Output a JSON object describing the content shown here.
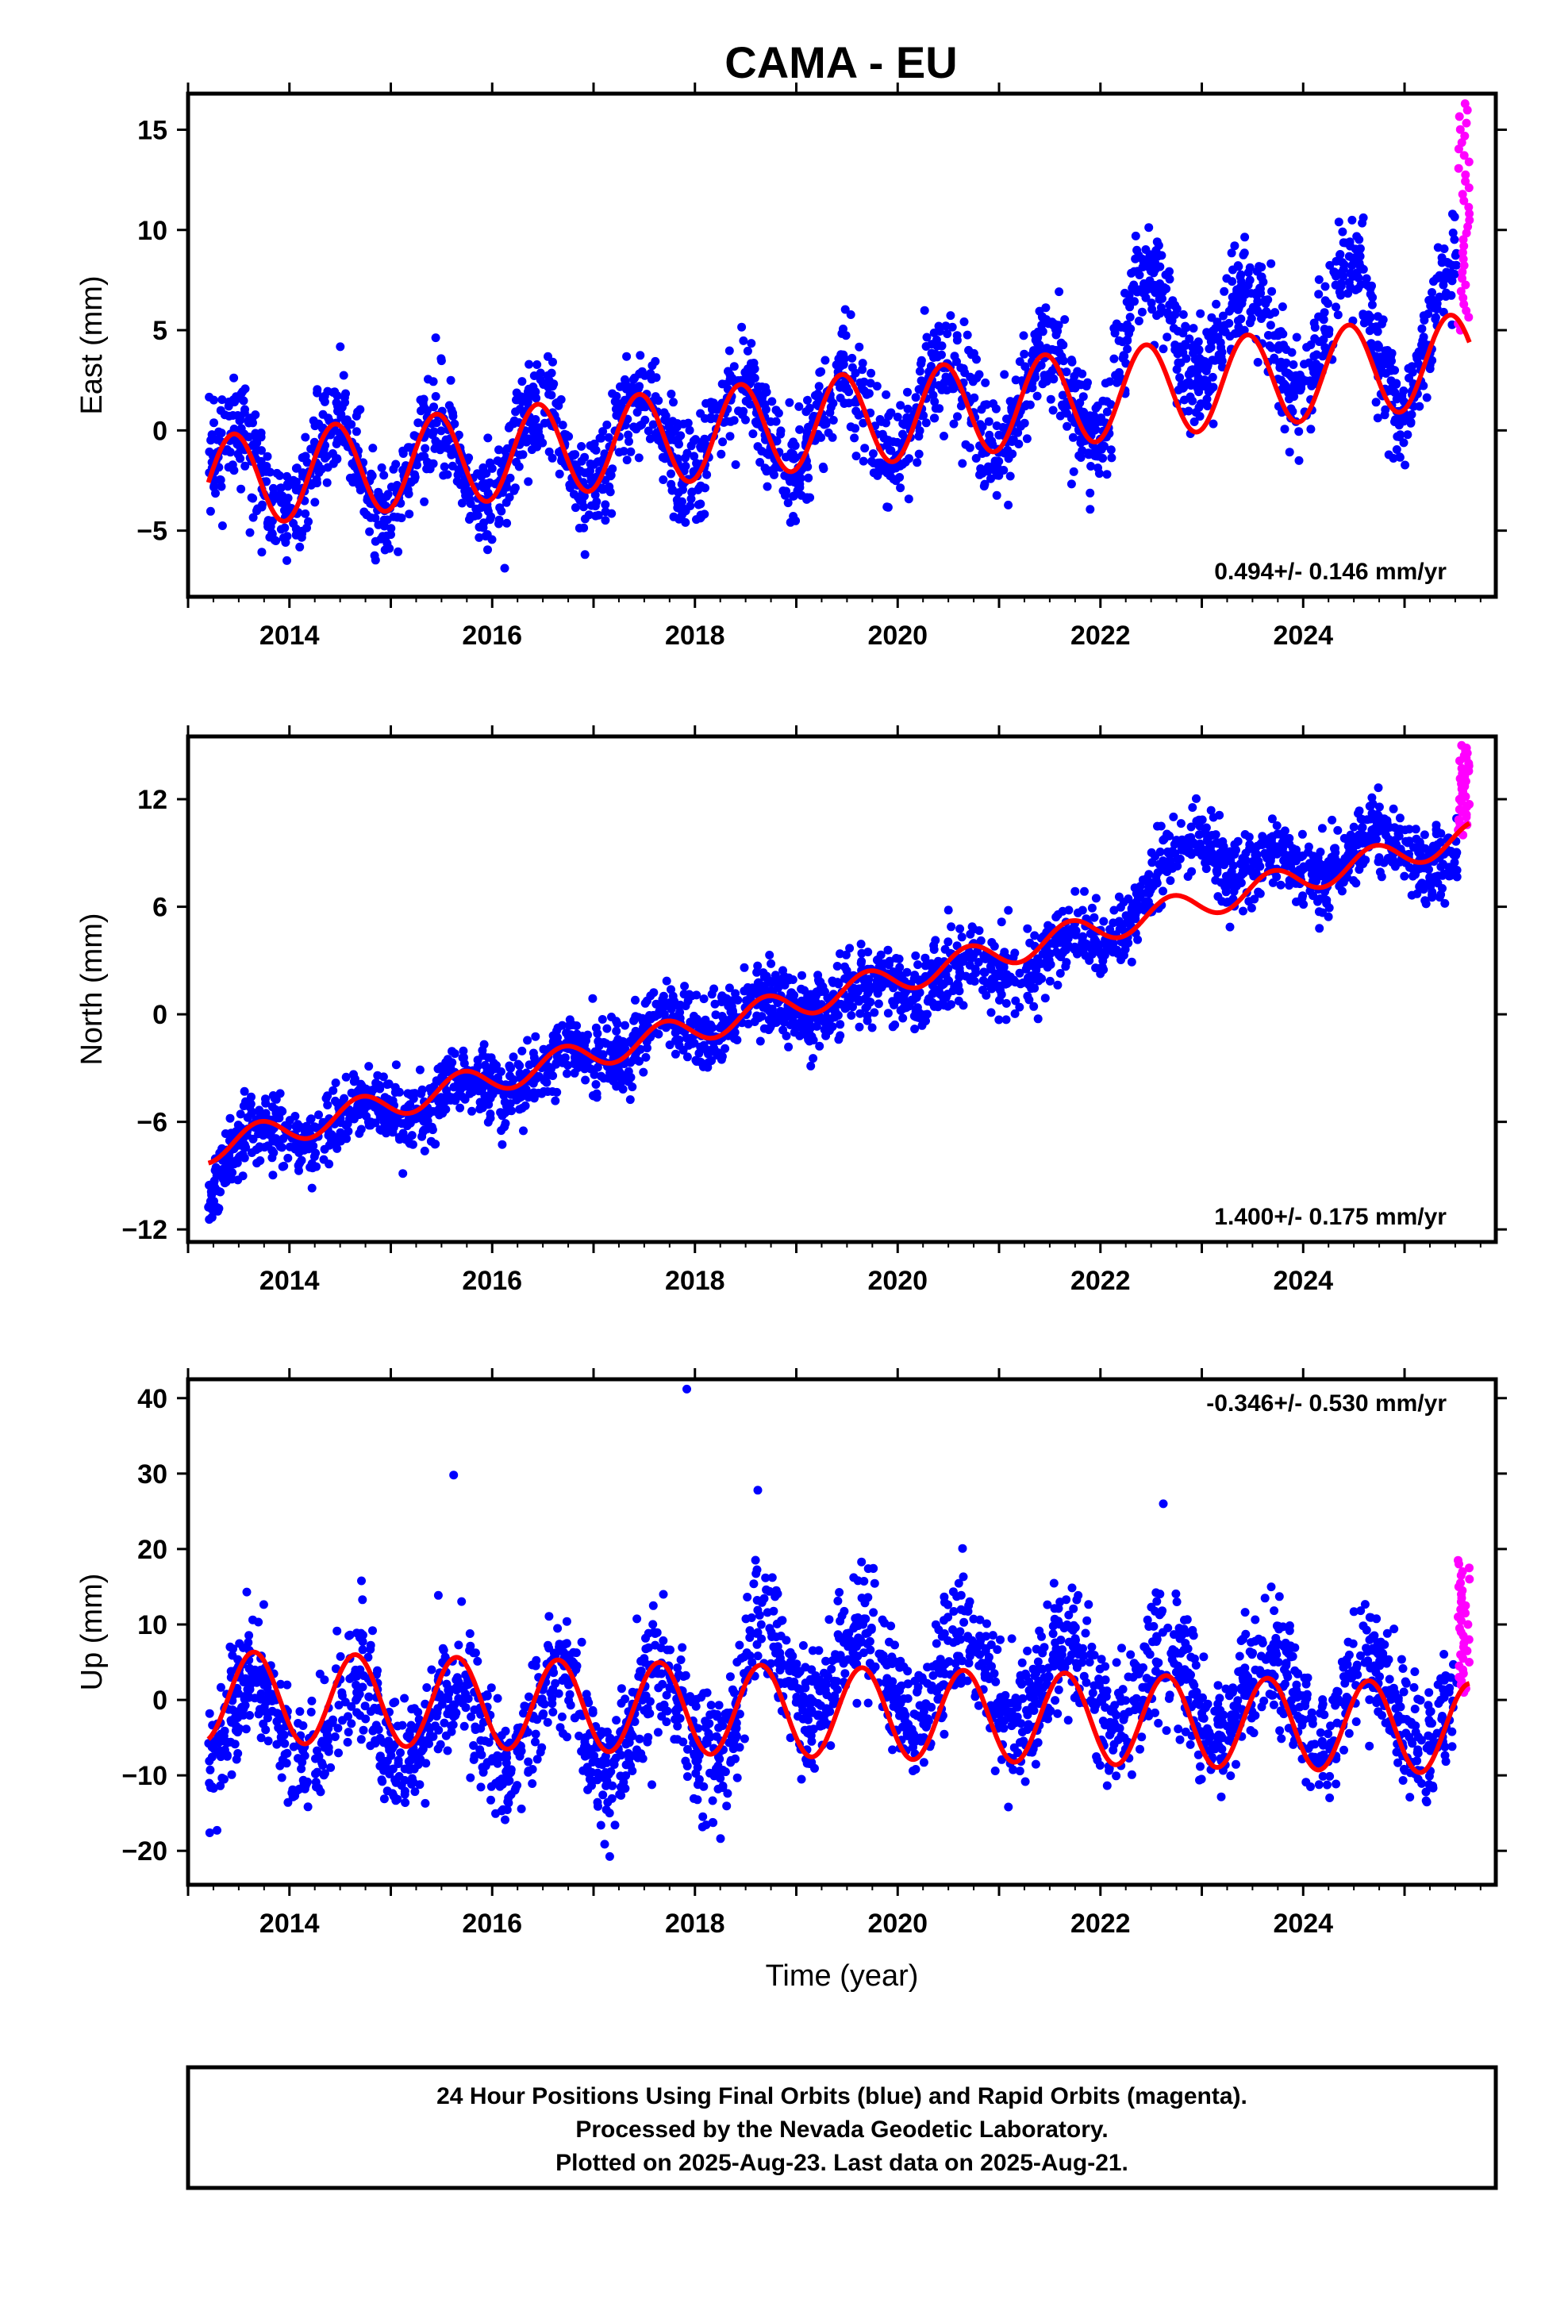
{
  "title": "CAMA - EU",
  "colors": {
    "final": "#0000ff",
    "rapid": "#ff00ff",
    "model": "#ff0000",
    "frame": "#000000"
  },
  "xlabel": "Time (year)",
  "footer": [
    "24 Hour Positions Using Final Orbits (blue) and Rapid Orbits (magenta).",
    "Processed by the Nevada Geodetic Laboratory.",
    "Plotted on 2025-Aug-23. Last data on 2025-Aug-21."
  ],
  "chart_data": [
    {
      "type": "scatter",
      "ylabel": "East (mm)",
      "rate_label": "0.494+/- 0.146 mm/yr",
      "xlim": [
        2013.0,
        2025.9
      ],
      "ylim": [
        -8.3,
        16.8
      ],
      "xticks": [
        2014,
        2016,
        2018,
        2020,
        2022,
        2024
      ],
      "xtick_labels": [
        "2014",
        "2016",
        "2018",
        "2020",
        "2022",
        "2024"
      ],
      "yticks": [
        -5,
        0,
        5,
        10,
        15
      ],
      "ytick_labels": [
        "−5",
        "0",
        "5",
        "10",
        "15"
      ],
      "series": [
        {
          "role": "final",
          "x_range": [
            2013.2,
            2025.52
          ],
          "noise": 1.3,
          "trend_knots": [
            [
              2013.2,
              -2.0
            ],
            [
              2015.0,
              -2.0
            ],
            [
              2016.0,
              -1.5
            ],
            [
              2017.0,
              -0.8
            ],
            [
              2018.0,
              -0.2
            ],
            [
              2019.0,
              0.3
            ],
            [
              2020.0,
              0.8
            ],
            [
              2021.0,
              1.5
            ],
            [
              2022.0,
              2.0
            ],
            [
              2022.4,
              5.5
            ],
            [
              2024.0,
              4.2
            ],
            [
              2024.5,
              6.0
            ],
            [
              2025.0,
              3.0
            ],
            [
              2025.52,
              6.0
            ]
          ],
          "seasonal": {
            "amplitude": 2.3,
            "peak_phase": 0.45
          }
        },
        {
          "role": "rapid",
          "x_range": [
            2025.5,
            2025.64
          ],
          "y_range": [
            5.0,
            16.3
          ]
        },
        {
          "role": "model",
          "x_range": [
            2013.2,
            2025.64
          ],
          "trend": {
            "x0": 2013.2,
            "y0": -2.6,
            "slope": 0.494
          },
          "seasonal": {
            "amplitude": 2.3,
            "peak_phase": 0.45
          }
        }
      ]
    },
    {
      "type": "scatter",
      "ylabel": "North (mm)",
      "rate_label": "1.400+/- 0.175 mm/yr",
      "xlim": [
        2013.0,
        2025.9
      ],
      "ylim": [
        -12.7,
        15.5
      ],
      "xticks": [
        2014,
        2016,
        2018,
        2020,
        2022,
        2024
      ],
      "xtick_labels": [
        "2014",
        "2016",
        "2018",
        "2020",
        "2022",
        "2024"
      ],
      "yticks": [
        -12,
        -6,
        0,
        6,
        12
      ],
      "ytick_labels": [
        "−12",
        "−6",
        "0",
        "6",
        "12"
      ],
      "series": [
        {
          "role": "final",
          "x_range": [
            2013.2,
            2025.52
          ],
          "noise": 1.0,
          "trend_knots": [
            [
              2013.2,
              -9.5
            ],
            [
              2013.5,
              -7.2
            ],
            [
              2014.0,
              -6.8
            ],
            [
              2015.0,
              -5.2
            ],
            [
              2016.0,
              -4.0
            ],
            [
              2017.0,
              -2.2
            ],
            [
              2018.0,
              -0.6
            ],
            [
              2019.0,
              0.5
            ],
            [
              2020.0,
              1.5
            ],
            [
              2021.0,
              2.5
            ],
            [
              2022.0,
              4.0
            ],
            [
              2022.5,
              7.0
            ],
            [
              2023.0,
              10.0
            ],
            [
              2023.4,
              8.0
            ],
            [
              2024.0,
              8.5
            ],
            [
              2025.0,
              9.5
            ],
            [
              2025.52,
              8.5
            ]
          ],
          "seasonal": {
            "amplitude": 0.8,
            "peak_phase": 0.7
          }
        },
        {
          "role": "rapid",
          "x_range": [
            2025.5,
            2025.64
          ],
          "y_range": [
            10.0,
            15.0
          ]
        },
        {
          "role": "model",
          "x_range": [
            2013.2,
            2025.64
          ],
          "trend": {
            "x0": 2013.2,
            "y0": -7.5,
            "slope": 1.4
          },
          "seasonal": {
            "amplitude": 0.8,
            "peak_phase": 0.7
          }
        }
      ]
    },
    {
      "type": "scatter",
      "ylabel": "Up (mm)",
      "rate_label": "-0.346+/- 0.530 mm/yr",
      "xlim": [
        2013.0,
        2025.9
      ],
      "ylim": [
        -24.5,
        42.5
      ],
      "xticks": [
        2014,
        2016,
        2018,
        2020,
        2022,
        2024
      ],
      "xtick_labels": [
        "2014",
        "2016",
        "2018",
        "2020",
        "2022",
        "2024"
      ],
      "yticks": [
        -20,
        -10,
        0,
        10,
        20,
        30,
        40
      ],
      "ytick_labels": [
        "−20",
        "−10",
        "0",
        "10",
        "20",
        "30",
        "40"
      ],
      "series": [
        {
          "role": "final",
          "x_range": [
            2013.2,
            2025.52
          ],
          "noise": 4.0,
          "trend_knots": [
            [
              2013.2,
              -3.0
            ],
            [
              2018.4,
              -3.0
            ],
            [
              2018.6,
              4.0
            ],
            [
              2023.0,
              1.5
            ],
            [
              2025.52,
              -1.5
            ]
          ],
          "seasonal": {
            "amplitude": 6.0,
            "peak_phase": 0.65
          },
          "outliers": [
            [
              2017.92,
              41.2
            ],
            [
              2015.62,
              29.8
            ],
            [
              2018.62,
              27.8
            ],
            [
              2022.62,
              26.0
            ]
          ]
        },
        {
          "role": "rapid",
          "x_range": [
            2025.5,
            2025.64
          ],
          "y_range": [
            1.0,
            18.5
          ]
        },
        {
          "role": "model",
          "x_range": [
            2013.2,
            2025.64
          ],
          "trend": {
            "x0": 2013.2,
            "y0": 0.5,
            "slope": -0.346
          },
          "seasonal": {
            "amplitude": 6.0,
            "peak_phase": 0.65
          }
        }
      ]
    }
  ]
}
